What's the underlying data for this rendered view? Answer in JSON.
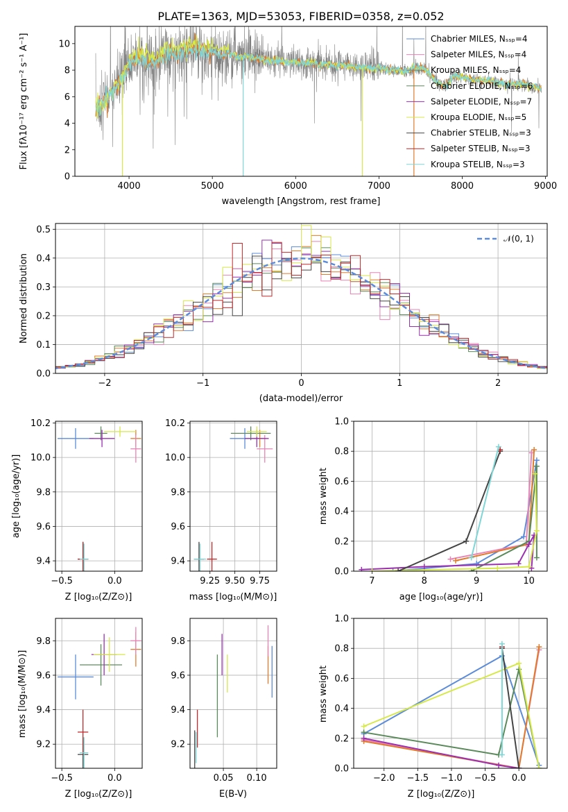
{
  "colors": {
    "chabrier_miles": "#5b8bd9",
    "salpeter_miles": "#e882b4",
    "kroupa_miles": "#7f7f7f",
    "chabrier_elodie": "#5a8a5a",
    "salpeter_elodie": "#9a2fb0",
    "kroupa_elodie": "#d6e84a",
    "chabrier_stelib": "#444444",
    "salpeter_stelib": "#c0282a",
    "kroupa_stelib": "#7fd6d6",
    "orange": "#e07b2c"
  },
  "chart_data": [
    {
      "type": "line",
      "title": "PLATE=1363, MJD=53053, FIBERID=0358, z=0.052",
      "xlabel": "wavelength [Angstrom, rest frame]",
      "ylabel": "Flux [fλ10⁻¹⁷ erg cm⁻² s⁻¹ A⁻¹]",
      "xlim": [
        3350,
        9020
      ],
      "ylim": [
        0,
        11.3
      ],
      "xticks": [
        4000,
        5000,
        6000,
        7000,
        8000,
        9000
      ],
      "yticks": [
        0,
        2,
        4,
        6,
        8,
        10
      ],
      "grid": false,
      "legend_position": "top-right",
      "legend": [
        {
          "label": "Chabrier MILES, Nₛₛₚ=4",
          "color_key": "chabrier_miles"
        },
        {
          "label": "Salpeter MILES, Nₛₛₚ=4",
          "color_key": "salpeter_miles"
        },
        {
          "label": "Kroupa MILES, Nₛₛₚ=4",
          "color_key": "kroupa_miles"
        },
        {
          "label": "Chabrier ELODIE, Nₛₛₚ=6",
          "color_key": "chabrier_elodie"
        },
        {
          "label": "Salpeter ELODIE, Nₛₛₚ=7",
          "color_key": "salpeter_elodie"
        },
        {
          "label": "Kroupa ELODIE, Nₛₛₚ=5",
          "color_key": "kroupa_elodie"
        },
        {
          "label": "Chabrier STELIB, Nₛₛₚ=3",
          "color_key": "chabrier_stelib"
        },
        {
          "label": "Salpeter STELIB, Nₛₛₚ=3",
          "color_key": "salpeter_stelib"
        },
        {
          "label": "Kroupa STELIB, Nₛₛₚ=3",
          "color_key": "kroupa_stelib"
        }
      ],
      "model_shape": {
        "x": [
          3600,
          3650,
          3700,
          3750,
          3800,
          3850,
          3900,
          3950,
          4000,
          4100,
          4200,
          4300,
          4400,
          4500,
          4600,
          4700,
          4800,
          4900,
          5000,
          5100,
          5200,
          5300,
          5400,
          5500,
          5600,
          5700,
          5800,
          5900,
          6000,
          6100,
          6200,
          6300,
          6400,
          6500,
          6600,
          6700,
          6800,
          6900,
          7000,
          7100,
          7200,
          7300,
          7400,
          7500,
          7600,
          7700,
          7800,
          7900,
          8000,
          8100,
          8200,
          8300,
          8400,
          8500,
          8600,
          8700,
          8800,
          8900,
          8950
        ],
        "y": [
          5.0,
          5.3,
          5.8,
          6.0,
          6.4,
          6.8,
          7.3,
          7.8,
          8.6,
          8.9,
          8.8,
          8.5,
          9.0,
          9.3,
          9.2,
          9.5,
          9.6,
          9.3,
          9.4,
          9.1,
          9.2,
          9.0,
          9.1,
          8.9,
          8.8,
          8.7,
          8.8,
          8.6,
          8.6,
          8.5,
          8.6,
          8.4,
          8.5,
          8.3,
          8.4,
          8.2,
          8.2,
          8.1,
          8.2,
          8.0,
          8.0,
          7.9,
          8.1,
          8.2,
          7.8,
          7.0,
          6.8,
          7.6,
          7.5,
          7.3,
          7.2,
          7.3,
          7.1,
          7.0,
          6.9,
          7.0,
          6.8,
          6.7,
          6.6
        ]
      }
    },
    {
      "type": "histogram",
      "xlabel": "(data-model)/error",
      "ylabel": "Normed distribution",
      "xlim": [
        -2.5,
        2.5
      ],
      "ylim": [
        0,
        0.52
      ],
      "xticks": [
        -2,
        -1,
        0,
        1,
        2
      ],
      "yticks": [
        0.0,
        0.1,
        0.2,
        0.3,
        0.4,
        0.5
      ],
      "grid": true,
      "legend_position": "top-right",
      "legend": [
        {
          "label": "𝒩(0, 1)",
          "color": "#5b8bd9",
          "style": "dashed"
        }
      ],
      "bin_width": 0.1
    },
    {
      "type": "scatter",
      "xlabel": "Z [log₁₀(Z/Z⊙)]",
      "ylabel": "age  [log₁₀(age/yr)]",
      "xlim": [
        -0.56,
        0.26
      ],
      "ylim": [
        9.34,
        10.21
      ],
      "xticks": [
        -0.5,
        0.0
      ],
      "yticks": [
        9.4,
        9.6,
        9.8,
        10.0,
        10.2
      ],
      "grid": true,
      "crosses": [
        {
          "x": -0.37,
          "y": 10.11,
          "dx": 0.17,
          "dy": 0.06,
          "color_key": "chabrier_miles"
        },
        {
          "x": 0.2,
          "y": 10.11,
          "dx": 0.05,
          "dy": 0.05,
          "color_key": "orange"
        },
        {
          "x": 0.2,
          "y": 10.05,
          "dx": 0.05,
          "dy": 0.08,
          "color_key": "salpeter_miles"
        },
        {
          "x": -0.13,
          "y": 10.14,
          "dx": 0.06,
          "dy": 0.04,
          "color_key": "chabrier_elodie"
        },
        {
          "x": -0.12,
          "y": 10.11,
          "dx": 0.12,
          "dy": 0.05,
          "color_key": "salpeter_elodie"
        },
        {
          "x": 0.05,
          "y": 10.15,
          "dx": 0.15,
          "dy": 0.03,
          "color_key": "kroupa_elodie"
        },
        {
          "x": -0.3,
          "y": 9.41,
          "dx": 0.05,
          "dy": 0.1,
          "color_key": "chabrier_stelib"
        },
        {
          "x": -0.3,
          "y": 9.41,
          "dx": 0.05,
          "dy": 0.1,
          "color_key": "salpeter_stelib"
        },
        {
          "x": -0.29,
          "y": 9.41,
          "dx": 0.04,
          "dy": 0.09,
          "color_key": "kroupa_stelib"
        }
      ]
    },
    {
      "type": "scatter",
      "xlabel": "mass [log₁₀(M/M⊙)]",
      "xlim": [
        9.05,
        9.92
      ],
      "ylim": [
        9.34,
        10.21
      ],
      "xticks": [
        9.25,
        9.5,
        9.75
      ],
      "xtick_labels": [
        "9.25",
        "9.50",
        "9.75"
      ],
      "yticks": [
        9.4,
        9.6,
        9.8,
        10.0,
        10.2
      ],
      "grid": true,
      "crosses": [
        {
          "x": 9.6,
          "y": 10.11,
          "dx": 0.15,
          "dy": 0.06,
          "color_key": "chabrier_miles"
        },
        {
          "x": 9.75,
          "y": 10.11,
          "dx": 0.06,
          "dy": 0.05,
          "color_key": "orange"
        },
        {
          "x": 9.8,
          "y": 10.05,
          "dx": 0.08,
          "dy": 0.08,
          "color_key": "salpeter_miles"
        },
        {
          "x": 9.66,
          "y": 10.14,
          "dx": 0.2,
          "dy": 0.04,
          "color_key": "chabrier_elodie"
        },
        {
          "x": 9.72,
          "y": 10.11,
          "dx": 0.12,
          "dy": 0.05,
          "color_key": "salpeter_elodie"
        },
        {
          "x": 9.72,
          "y": 10.15,
          "dx": 0.1,
          "dy": 0.03,
          "color_key": "kroupa_elodie"
        },
        {
          "x": 9.14,
          "y": 9.41,
          "dx": 0.05,
          "dy": 0.1,
          "color_key": "chabrier_stelib"
        },
        {
          "x": 9.27,
          "y": 9.41,
          "dx": 0.05,
          "dy": 0.1,
          "color_key": "salpeter_stelib"
        },
        {
          "x": 9.15,
          "y": 9.41,
          "dx": 0.06,
          "dy": 0.09,
          "color_key": "kroupa_stelib"
        }
      ]
    },
    {
      "type": "line",
      "xlabel": "age  [log₁₀(age/yr)]",
      "ylabel": "mass weight",
      "xlim": [
        6.65,
        10.35
      ],
      "ylim": [
        0,
        1.0
      ],
      "xticks": [
        7,
        8,
        9,
        10
      ],
      "yticks": [
        0.0,
        0.2,
        0.4,
        0.6,
        0.8,
        1.0
      ],
      "grid": true,
      "series": [
        {
          "color_key": "chabrier_miles",
          "x": [
            7.4,
            9.0,
            9.9,
            10.15
          ],
          "y": [
            0.0,
            0.05,
            0.23,
            0.74
          ]
        },
        {
          "color_key": "salpeter_miles",
          "x": [
            8.5,
            9.95,
            10.05
          ],
          "y": [
            0.08,
            0.18,
            0.79
          ]
        },
        {
          "color_key": "orange",
          "x": [
            8.6,
            10.0,
            10.1
          ],
          "y": [
            0.07,
            0.18,
            0.81
          ]
        },
        {
          "color_key": "chabrier_elodie",
          "x": [
            8.9,
            10.0,
            10.15,
            10.15
          ],
          "y": [
            0.0,
            0.2,
            0.7,
            0.09
          ]
        },
        {
          "color_key": "salpeter_elodie",
          "x": [
            6.8,
            8.0,
            9.8,
            10.0,
            10.1,
            10.05
          ],
          "y": [
            0.01,
            0.03,
            0.05,
            0.18,
            0.24,
            0.02
          ]
        },
        {
          "color_key": "kroupa_elodie",
          "x": [
            7.0,
            9.4,
            10.0,
            10.15,
            10.12
          ],
          "y": [
            0.0,
            0.02,
            0.03,
            0.27,
            0.65
          ]
        },
        {
          "color_key": "chabrier_stelib",
          "x": [
            7.5,
            8.8,
            9.45
          ],
          "y": [
            0.0,
            0.2,
            0.8
          ]
        },
        {
          "color_key": "salpeter_stelib",
          "x": [
            9.45
          ],
          "y": [
            0.81
          ]
        },
        {
          "color_key": "kroupa_stelib",
          "x": [
            8.9,
            9.42
          ],
          "y": [
            0.09,
            0.83
          ]
        }
      ]
    },
    {
      "type": "scatter",
      "xlabel": "Z [log₁₀(Z/Z⊙)]",
      "ylabel": "mass [log₁₀(M/M⊙)]",
      "xlim": [
        -0.56,
        0.26
      ],
      "ylim": [
        9.06,
        9.93
      ],
      "xticks": [
        -0.5,
        0.0
      ],
      "yticks": [
        9.2,
        9.4,
        9.6,
        9.8
      ],
      "grid": true,
      "crosses": [
        {
          "x": -0.37,
          "y": 9.59,
          "dx": 0.17,
          "dy": 0.13,
          "color_key": "chabrier_miles"
        },
        {
          "x": 0.2,
          "y": 9.75,
          "dx": 0.05,
          "dy": 0.1,
          "color_key": "orange"
        },
        {
          "x": 0.2,
          "y": 9.8,
          "dx": 0.05,
          "dy": 0.08,
          "color_key": "salpeter_miles"
        },
        {
          "x": -0.13,
          "y": 9.66,
          "dx": 0.2,
          "dy": 0.12,
          "color_key": "chabrier_elodie"
        },
        {
          "x": -0.1,
          "y": 9.72,
          "dx": 0.12,
          "dy": 0.12,
          "color_key": "salpeter_elodie"
        },
        {
          "x": -0.05,
          "y": 9.72,
          "dx": 0.15,
          "dy": 0.1,
          "color_key": "kroupa_elodie"
        },
        {
          "x": -0.3,
          "y": 9.14,
          "dx": 0.05,
          "dy": 0.1,
          "color_key": "chabrier_stelib"
        },
        {
          "x": -0.3,
          "y": 9.27,
          "dx": 0.05,
          "dy": 0.13,
          "color_key": "salpeter_stelib"
        },
        {
          "x": -0.29,
          "y": 9.15,
          "dx": 0.04,
          "dy": 0.09,
          "color_key": "kroupa_stelib"
        }
      ]
    },
    {
      "type": "scatter",
      "xlabel": "E(B-V)",
      "xlim": [
        0.0,
        0.13
      ],
      "ylim": [
        9.06,
        9.93
      ],
      "xticks": [
        0.05,
        0.1
      ],
      "xtick_labels": [
        "0.05",
        "0.10"
      ],
      "yticks": [
        9.2,
        9.4,
        9.6,
        9.8
      ],
      "grid": true,
      "crosses": [
        {
          "x": 0.123,
          "y": 9.62,
          "dx": 0.0,
          "dy": 0.15,
          "color_key": "chabrier_miles"
        },
        {
          "x": 0.117,
          "y": 9.66,
          "dx": 0.0,
          "dy": 0.11,
          "color_key": "orange"
        },
        {
          "x": 0.117,
          "y": 9.8,
          "dx": 0.0,
          "dy": 0.09,
          "color_key": "salpeter_miles"
        },
        {
          "x": 0.041,
          "y": 9.48,
          "dx": 0.0,
          "dy": 0.24,
          "color_key": "chabrier_elodie"
        },
        {
          "x": 0.048,
          "y": 9.72,
          "dx": 0.0,
          "dy": 0.12,
          "color_key": "salpeter_elodie"
        },
        {
          "x": 0.056,
          "y": 9.61,
          "dx": 0.0,
          "dy": 0.11,
          "color_key": "kroupa_elodie"
        },
        {
          "x": 0.007,
          "y": 9.17,
          "dx": 0.0,
          "dy": 0.11,
          "color_key": "chabrier_stelib"
        },
        {
          "x": 0.011,
          "y": 9.29,
          "dx": 0.0,
          "dy": 0.11,
          "color_key": "salpeter_stelib"
        },
        {
          "x": 0.009,
          "y": 9.18,
          "dx": 0.0,
          "dy": 0.09,
          "color_key": "kroupa_stelib"
        }
      ]
    },
    {
      "type": "line",
      "xlabel": "Z [log₁₀(Z/Z⊙)]",
      "ylabel": "mass weight",
      "xlim": [
        -2.45,
        0.42
      ],
      "ylim": [
        0,
        1.0
      ],
      "xticks": [
        -2.0,
        -1.5,
        -1.0,
        -0.5,
        0.0
      ],
      "yticks": [
        0.0,
        0.2,
        0.4,
        0.6,
        0.8,
        1.0
      ],
      "grid": true,
      "series": [
        {
          "color_key": "chabrier_miles",
          "x": [
            -2.3,
            -0.25,
            0.3
          ],
          "y": [
            0.23,
            0.75,
            0.02
          ]
        },
        {
          "color_key": "salpeter_miles",
          "x": [
            -2.3,
            0.0,
            0.3
          ],
          "y": [
            0.19,
            0.0,
            0.79
          ]
        },
        {
          "color_key": "orange",
          "x": [
            -2.3,
            0.0,
            0.3
          ],
          "y": [
            0.18,
            0.0,
            0.81
          ]
        },
        {
          "color_key": "chabrier_elodie",
          "x": [
            -2.3,
            -0.3,
            0.0,
            0.3
          ],
          "y": [
            0.24,
            0.09,
            0.66,
            0.0
          ]
        },
        {
          "color_key": "salpeter_elodie",
          "x": [
            -2.3,
            -0.3,
            0.0
          ],
          "y": [
            0.2,
            0.02,
            0.0
          ]
        },
        {
          "color_key": "kroupa_elodie",
          "x": [
            -2.3,
            0.0,
            0.3
          ],
          "y": [
            0.28,
            0.7,
            0.0
          ]
        },
        {
          "color_key": "chabrier_stelib",
          "x": [
            -0.25,
            0.0
          ],
          "y": [
            0.8,
            0.0
          ]
        },
        {
          "color_key": "salpeter_stelib",
          "x": [
            -0.25
          ],
          "y": [
            0.81
          ]
        },
        {
          "color_key": "kroupa_stelib",
          "x": [
            -0.25,
            -0.25
          ],
          "y": [
            0.09,
            0.83
          ]
        }
      ]
    }
  ]
}
